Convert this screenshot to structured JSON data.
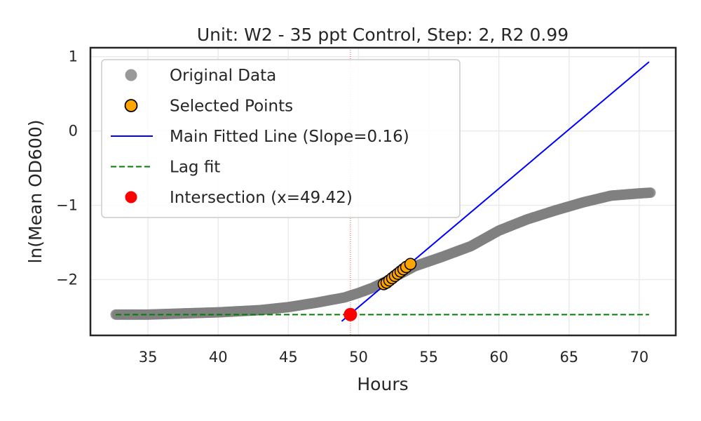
{
  "chart_data": {
    "type": "scatter",
    "title": "Unit: W2 - 35 ppt Control, Step: 2, R2 0.99",
    "xlabel": "Hours",
    "ylabel": "ln(Mean OD600)",
    "xlim": [
      30.9,
      72.6
    ],
    "ylim": [
      -2.75,
      1.12
    ],
    "xticks": [
      35,
      40,
      45,
      50,
      55,
      60,
      65,
      70
    ],
    "xtick_labels": [
      "35",
      "40",
      "45",
      "50",
      "55",
      "60",
      "65",
      "70"
    ],
    "yticks": [
      -2,
      -1,
      0,
      1
    ],
    "ytick_labels": [
      "−2",
      "−1",
      "0",
      "1"
    ],
    "grid": true,
    "legend_position": "top-left",
    "legend": [
      {
        "label": "Original Data",
        "marker": "circle",
        "color": "#808080"
      },
      {
        "label": "Selected Points",
        "marker": "circle",
        "color": "#ffa500",
        "edge": "#000000"
      },
      {
        "label": "Main Fitted Line (Slope=0.16)",
        "marker": "line",
        "color": "#0000ff"
      },
      {
        "label": "Lag fit",
        "marker": "dashed-line",
        "color": "#008000"
      },
      {
        "label": "Intersection (x=49.42)",
        "marker": "circle",
        "color": "#ff0000"
      }
    ],
    "series": [
      {
        "name": "Original Data",
        "color": "#808080",
        "curve": [
          [
            32.7,
            -2.47
          ],
          [
            35,
            -2.47
          ],
          [
            40,
            -2.44
          ],
          [
            43,
            -2.41
          ],
          [
            45,
            -2.37
          ],
          [
            47,
            -2.31
          ],
          [
            49,
            -2.24
          ],
          [
            50,
            -2.18
          ],
          [
            51,
            -2.11
          ],
          [
            52,
            -2.02
          ],
          [
            53,
            -1.92
          ],
          [
            54,
            -1.82
          ],
          [
            56,
            -1.69
          ],
          [
            58,
            -1.55
          ],
          [
            60,
            -1.34
          ],
          [
            62,
            -1.19
          ],
          [
            64,
            -1.07
          ],
          [
            66,
            -0.96
          ],
          [
            68,
            -0.87
          ],
          [
            70,
            -0.84
          ],
          [
            70.8,
            -0.83
          ]
        ]
      },
      {
        "name": "Selected Points",
        "color": "#ffa500",
        "x": [
          51.8,
          52.0,
          52.2,
          52.4,
          52.6,
          52.8,
          53.0,
          53.2,
          53.4,
          53.7
        ],
        "y": [
          -2.06,
          -2.04,
          -2.01,
          -1.98,
          -1.95,
          -1.92,
          -1.89,
          -1.86,
          -1.83,
          -1.79
        ]
      },
      {
        "name": "Main Fitted Line (Slope=0.16)",
        "color": "#0000ff",
        "x": [
          48.8,
          70.7
        ],
        "y": [
          -2.56,
          0.93
        ]
      },
      {
        "name": "Lag fit",
        "color": "#008000",
        "x": [
          32.7,
          70.7
        ],
        "y": [
          -2.47,
          -2.47
        ]
      },
      {
        "name": "Intersection (x=49.42)",
        "color": "#ff0000",
        "x": [
          49.42
        ],
        "y": [
          -2.47
        ]
      }
    ],
    "vline": {
      "x": 49.42,
      "color": "#ff0000"
    }
  }
}
